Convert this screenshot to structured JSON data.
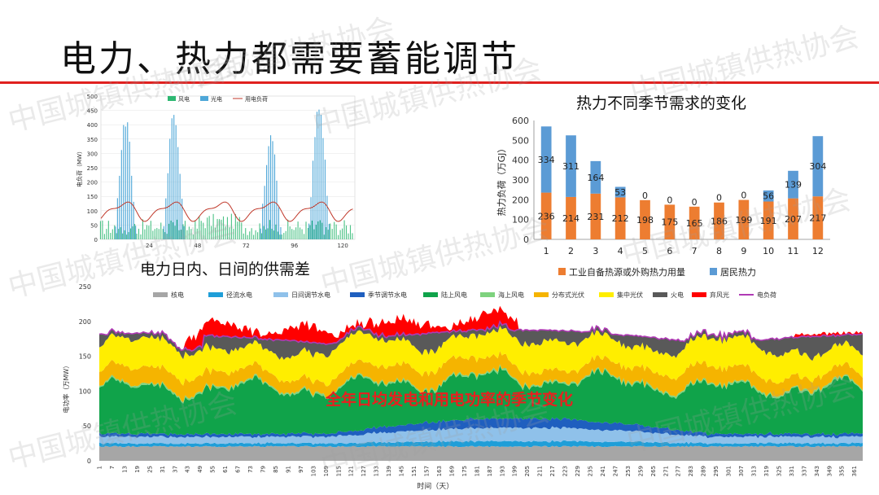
{
  "slide_title": "电力、热力都需要蓄能调节",
  "watermark": "中国城镇供热协会",
  "chart_data": [
    {
      "type": "bar+line",
      "caption": "电力日内、日间的供需差",
      "xlabel": "小时",
      "ylabel": "电负荷（MW）",
      "ylim": [
        0,
        500
      ],
      "yticks": [
        0,
        50,
        100,
        150,
        200,
        250,
        300,
        350,
        400,
        450,
        500
      ],
      "xticks": [
        24,
        48,
        72,
        96,
        120
      ],
      "xlim": [
        0,
        126
      ],
      "legend": [
        "风电",
        "光电",
        "用电负荷"
      ],
      "series": [
        {
          "name": "风电",
          "color": "#2eb872",
          "desc": "hourly wind generation, roughly 10-90 MW"
        },
        {
          "name": "光电",
          "color": "#4ea7d8",
          "peaks_by_day": [
            440,
            455,
            0,
            380,
            490,
            0
          ]
        },
        {
          "name": "用电负荷",
          "color": "#c0392b",
          "range": [
            70,
            150
          ]
        }
      ]
    },
    {
      "type": "stacked_bar",
      "title": "热力不同季节需求的变化",
      "ylabel": "热力负荷（万GJ）",
      "ylim": [
        0,
        600
      ],
      "yticks": [
        0,
        100,
        200,
        300,
        400,
        500,
        600
      ],
      "categories": [
        "1",
        "2",
        "3",
        "4",
        "5",
        "6",
        "7",
        "8",
        "9",
        "10",
        "11",
        "12"
      ],
      "series": [
        {
          "name": "工业自备热源或外购热力用量",
          "color": "#ed7d31",
          "values": [
            236,
            214,
            231,
            212,
            198,
            175,
            165,
            186,
            199,
            191,
            207,
            217
          ]
        },
        {
          "name": "居民热力",
          "color": "#5b9bd5",
          "values": [
            334,
            311,
            164,
            53,
            0,
            0,
            0,
            0,
            0,
            56,
            139,
            304
          ]
        }
      ]
    },
    {
      "type": "area",
      "annotation": "全年日均发电和用电功率的季节变化",
      "xlabel": "时间（天）",
      "ylabel": "电功率（万MW）",
      "ylim": [
        0,
        250
      ],
      "yticks": [
        0,
        50,
        100,
        150,
        200,
        250
      ],
      "xticks": [
        "1",
        "7",
        "13",
        "19",
        "25",
        "31",
        "37",
        "43",
        "49",
        "55",
        "61",
        "67",
        "73",
        "79",
        "85",
        "91",
        "97",
        "103",
        "109",
        "115",
        "121",
        "127",
        "133",
        "139",
        "145",
        "151",
        "157",
        "163",
        "169",
        "175",
        "181",
        "187",
        "193",
        "199",
        "205",
        "211",
        "217",
        "223",
        "229",
        "235",
        "241",
        "247",
        "253",
        "259",
        "265",
        "271",
        "277",
        "283",
        "289",
        "295",
        "301",
        "307",
        "313",
        "319",
        "325",
        "331",
        "337",
        "343",
        "349",
        "355",
        "361"
      ],
      "legend": [
        "核电",
        "径流水电",
        "日间调节水电",
        "季节调节水电",
        "陆上风电",
        "海上风电",
        "分布式光伏",
        "集中光伏",
        "火电",
        "弃风光",
        "电负荷"
      ],
      "series_colors": [
        "#a6a6a6",
        "#1f9ed8",
        "#8fc1ea",
        "#1f5fbf",
        "#10a34a",
        "#7ed27e",
        "#f5b400",
        "#ffee00",
        "#595959",
        "#ff0000",
        "#b03ab5"
      ],
      "approx_levels": {
        "核电": 20,
        "径流水电": 4,
        "日间调节水电": "6-18",
        "季节调节水电": "2-12",
        "陆上风电": "40-80",
        "海上风电": 2,
        "分布式光伏": "15-25",
        "集中光伏": "25-40",
        "火电": "10-40",
        "弃风光": "0-30",
        "电负荷": "120-185"
      }
    }
  ]
}
